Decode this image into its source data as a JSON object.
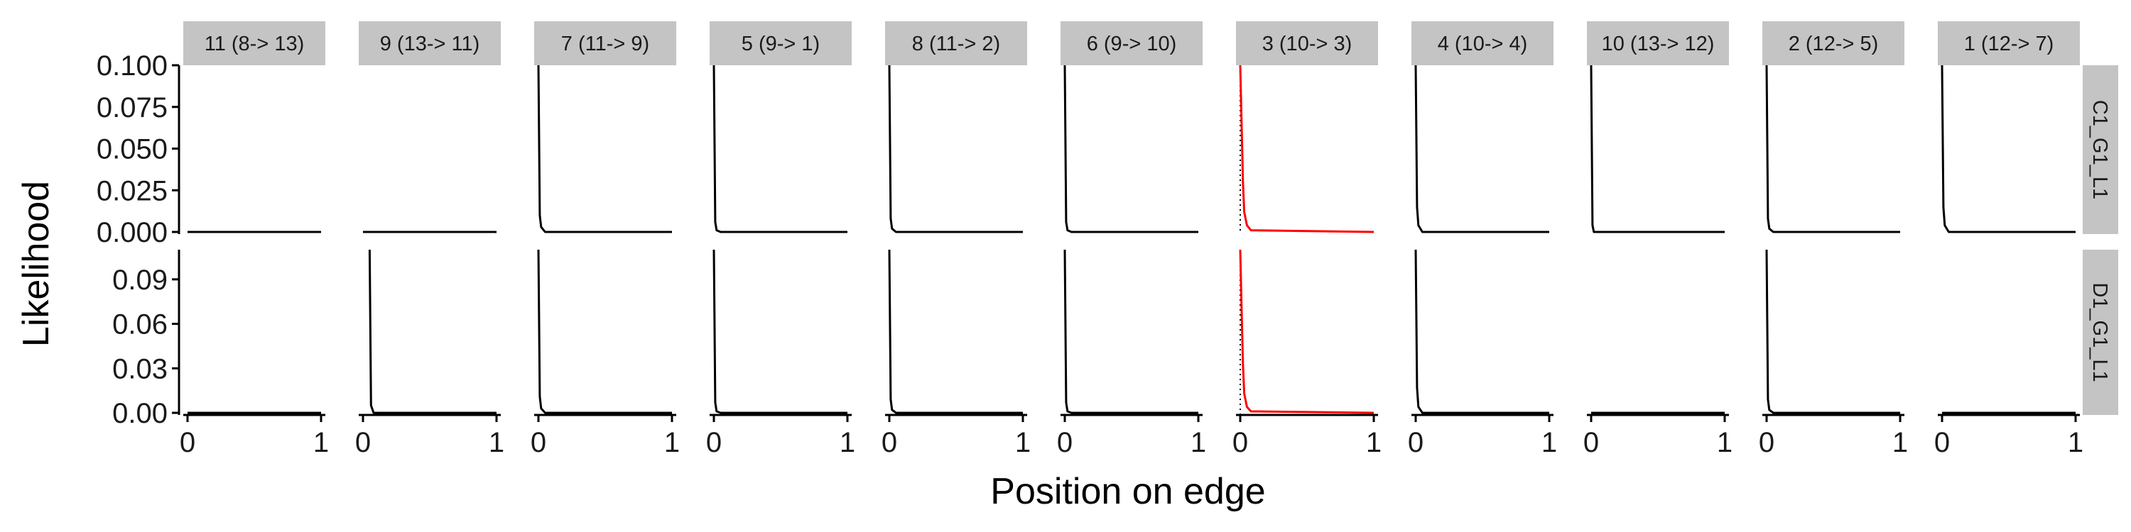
{
  "chart_data": {
    "type": "line",
    "xlabel": "Position on edge",
    "ylabel": "Likelihood",
    "xlim": [
      0,
      1
    ],
    "x_ticks": [
      "0",
      "1"
    ],
    "facet_columns": [
      "11 (8-> 13)",
      "9 (13-> 11)",
      "7 (11-> 9)",
      "5 (9-> 1)",
      "8 (11-> 2)",
      "6 (9-> 10)",
      "3 (10-> 3)",
      "4 (10-> 4)",
      "10 (13-> 12)",
      "2 (12-> 5)",
      "1 (12-> 7)"
    ],
    "highlight_column": "3 (10-> 3)",
    "highlight_color": "#ff0000",
    "line_color": "#000000",
    "strip_color": "#c4c4c4",
    "dotted_reference_x": 0,
    "rows": [
      {
        "label": "C1_G1_L1",
        "ylim": [
          0,
          0.1
        ],
        "y_ticks": [
          "0.000",
          "0.025",
          "0.050",
          "0.075",
          "0.100"
        ],
        "y_tick_values": [
          0,
          0.025,
          0.05,
          0.075,
          0.1
        ],
        "series": [
          {
            "column": "11 (8-> 13)",
            "x": [
              0,
              1
            ],
            "y": [
              0,
              0
            ]
          },
          {
            "column": "9 (13-> 11)",
            "x": [
              0,
              1
            ],
            "y": [
              0,
              0
            ]
          },
          {
            "column": "7 (11-> 9)",
            "x": [
              0,
              0.01,
              0.02,
              0.05,
              1
            ],
            "y": [
              0.1,
              0.01,
              0.003,
              0,
              0
            ]
          },
          {
            "column": "5 (9-> 1)",
            "x": [
              0,
              0.01,
              0.02,
              0.05,
              1
            ],
            "y": [
              0.1,
              0.006,
              0.001,
              0,
              0
            ]
          },
          {
            "column": "8 (11-> 2)",
            "x": [
              0,
              0.01,
              0.02,
              0.05,
              1
            ],
            "y": [
              0.1,
              0.008,
              0.002,
              0,
              0
            ]
          },
          {
            "column": "6 (9-> 10)",
            "x": [
              0,
              0.01,
              0.02,
              0.05,
              1
            ],
            "y": [
              0.1,
              0.006,
              0.001,
              0,
              0
            ]
          },
          {
            "column": "3 (10-> 3)",
            "x": [
              0,
              0.01,
              0.02,
              0.03,
              0.05,
              0.08,
              1
            ],
            "y": [
              0.1,
              0.065,
              0.03,
              0.012,
              0.004,
              0.001,
              0
            ]
          },
          {
            "column": "4 (10-> 4)",
            "x": [
              0,
              0.01,
              0.02,
              0.05,
              1
            ],
            "y": [
              0.1,
              0.015,
              0.004,
              0,
              0
            ]
          },
          {
            "column": "10 (13-> 12)",
            "x": [
              0,
              0.01,
              0.02,
              1
            ],
            "y": [
              0.1,
              0.004,
              0,
              0
            ]
          },
          {
            "column": "2 (12-> 5)",
            "x": [
              0,
              0.01,
              0.02,
              0.05,
              1
            ],
            "y": [
              0.1,
              0.008,
              0.002,
              0,
              0
            ]
          },
          {
            "column": "1 (12-> 7)",
            "x": [
              0,
              0.01,
              0.02,
              0.05,
              1
            ],
            "y": [
              0.1,
              0.015,
              0.004,
              0,
              0
            ]
          }
        ]
      },
      {
        "label": "D1_G1_L1",
        "ylim": [
          0,
          0.11
        ],
        "y_ticks": [
          "0.00",
          "0.03",
          "0.06",
          "0.09"
        ],
        "y_tick_values": [
          0,
          0.03,
          0.06,
          0.09
        ],
        "series": [
          {
            "column": "11 (8-> 13)",
            "x": [
              0,
              1
            ],
            "y": [
              0,
              0
            ]
          },
          {
            "column": "9 (13-> 11)",
            "x": [
              0.05,
              0.06,
              0.08,
              1
            ],
            "y": [
              0.11,
              0.005,
              0,
              0
            ]
          },
          {
            "column": "7 (11-> 9)",
            "x": [
              0,
              0.01,
              0.02,
              0.05,
              1
            ],
            "y": [
              0.11,
              0.011,
              0.003,
              0,
              0
            ]
          },
          {
            "column": "5 (9-> 1)",
            "x": [
              0,
              0.01,
              0.02,
              0.05,
              1
            ],
            "y": [
              0.11,
              0.007,
              0.001,
              0,
              0
            ]
          },
          {
            "column": "8 (11-> 2)",
            "x": [
              0,
              0.01,
              0.02,
              0.05,
              1
            ],
            "y": [
              0.11,
              0.009,
              0.002,
              0,
              0
            ]
          },
          {
            "column": "6 (9-> 10)",
            "x": [
              0,
              0.01,
              0.02,
              0.05,
              1
            ],
            "y": [
              0.11,
              0.007,
              0.001,
              0,
              0
            ]
          },
          {
            "column": "3 (10-> 3)",
            "x": [
              0,
              0.01,
              0.02,
              0.03,
              0.05,
              0.08,
              1
            ],
            "y": [
              0.11,
              0.07,
              0.033,
              0.013,
              0.004,
              0.001,
              0
            ]
          },
          {
            "column": "4 (10-> 4)",
            "x": [
              0,
              0.01,
              0.02,
              0.05,
              1
            ],
            "y": [
              0.11,
              0.017,
              0.004,
              0,
              0
            ]
          },
          {
            "column": "10 (13-> 12)",
            "x": [
              0,
              1
            ],
            "y": [
              0,
              0
            ]
          },
          {
            "column": "2 (12-> 5)",
            "x": [
              0,
              0.01,
              0.02,
              0.05,
              1
            ],
            "y": [
              0.11,
              0.009,
              0.002,
              0,
              0
            ]
          },
          {
            "column": "1 (12-> 7)",
            "x": [
              0,
              1
            ],
            "y": [
              0,
              0
            ]
          }
        ]
      }
    ]
  }
}
